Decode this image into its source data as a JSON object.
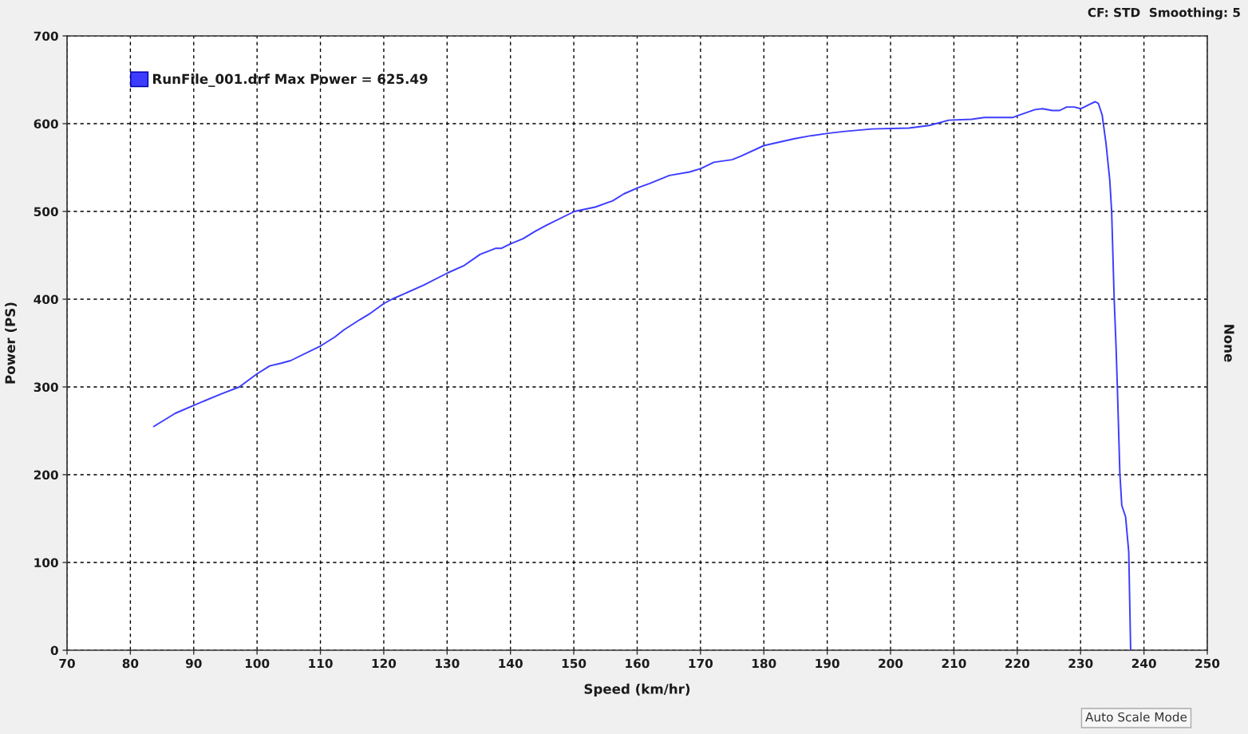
{
  "chart_data": {
    "type": "line",
    "subtitle": "CF: STD  Smoothing: 5",
    "xlabel": "Speed (km/hr)",
    "ylabel": "Power (PS)",
    "y2label": "None",
    "annotations": [
      "Auto Scale Mode"
    ],
    "series": [
      {
        "name": "RunFile_001.drf Max Power = 625.49",
        "color": "#3c3cff",
        "x": [
          83.7,
          87.1,
          90,
          94.3,
          97.2,
          100,
          102,
          103.8,
          105.3,
          110.1,
          112.3,
          113.7,
          116.3,
          117.7,
          120,
          121.3,
          126.3,
          130.1,
          132.6,
          135.2,
          137.7,
          138.6,
          140,
          142,
          143.8,
          145.6,
          150.1,
          153.4,
          156.1,
          157.9,
          160.1,
          162,
          165.1,
          168.3,
          170.1,
          172.1,
          175,
          176.4,
          180,
          181.8,
          184.9,
          187.2,
          190.1,
          192.5,
          197.1,
          202.9,
          206.1,
          209.2,
          212.8,
          214.8,
          219.3,
          220,
          222.8,
          224,
          225.5,
          226.7,
          227.8,
          229,
          230,
          231.4,
          232.3,
          232.8,
          233.4,
          234,
          234.6,
          234.9,
          235.3,
          235.6,
          235.8,
          236.2,
          236.5,
          237.1,
          237.6,
          237.9
        ],
        "values": [
          255,
          270,
          279,
          292,
          300,
          315,
          324,
          327,
          330,
          347,
          357,
          365,
          377,
          383,
          395,
          400,
          416,
          430,
          438,
          451,
          458,
          458,
          463,
          469,
          477,
          484,
          500,
          505,
          512,
          520,
          527,
          532,
          541,
          545,
          549,
          556,
          559,
          563,
          575,
          578,
          583,
          586,
          589,
          591,
          594,
          595,
          598,
          604,
          605,
          607,
          607,
          609,
          616,
          617,
          615,
          615,
          619,
          619,
          617,
          622,
          625,
          623,
          610,
          578,
          536,
          500,
          400,
          345,
          300,
          201,
          165,
          152,
          112,
          0
        ]
      }
    ],
    "xlim": [
      70,
      250
    ],
    "xticks": [
      70,
      80,
      90,
      100,
      110,
      120,
      130,
      140,
      150,
      160,
      170,
      180,
      190,
      200,
      210,
      220,
      230,
      240,
      250
    ],
    "ylim": [
      0,
      700
    ],
    "yticks": [
      0,
      100,
      200,
      300,
      400,
      500,
      600,
      700
    ],
    "grid": true,
    "legend": "top left",
    "line_style": "solid",
    "marker": "none"
  }
}
